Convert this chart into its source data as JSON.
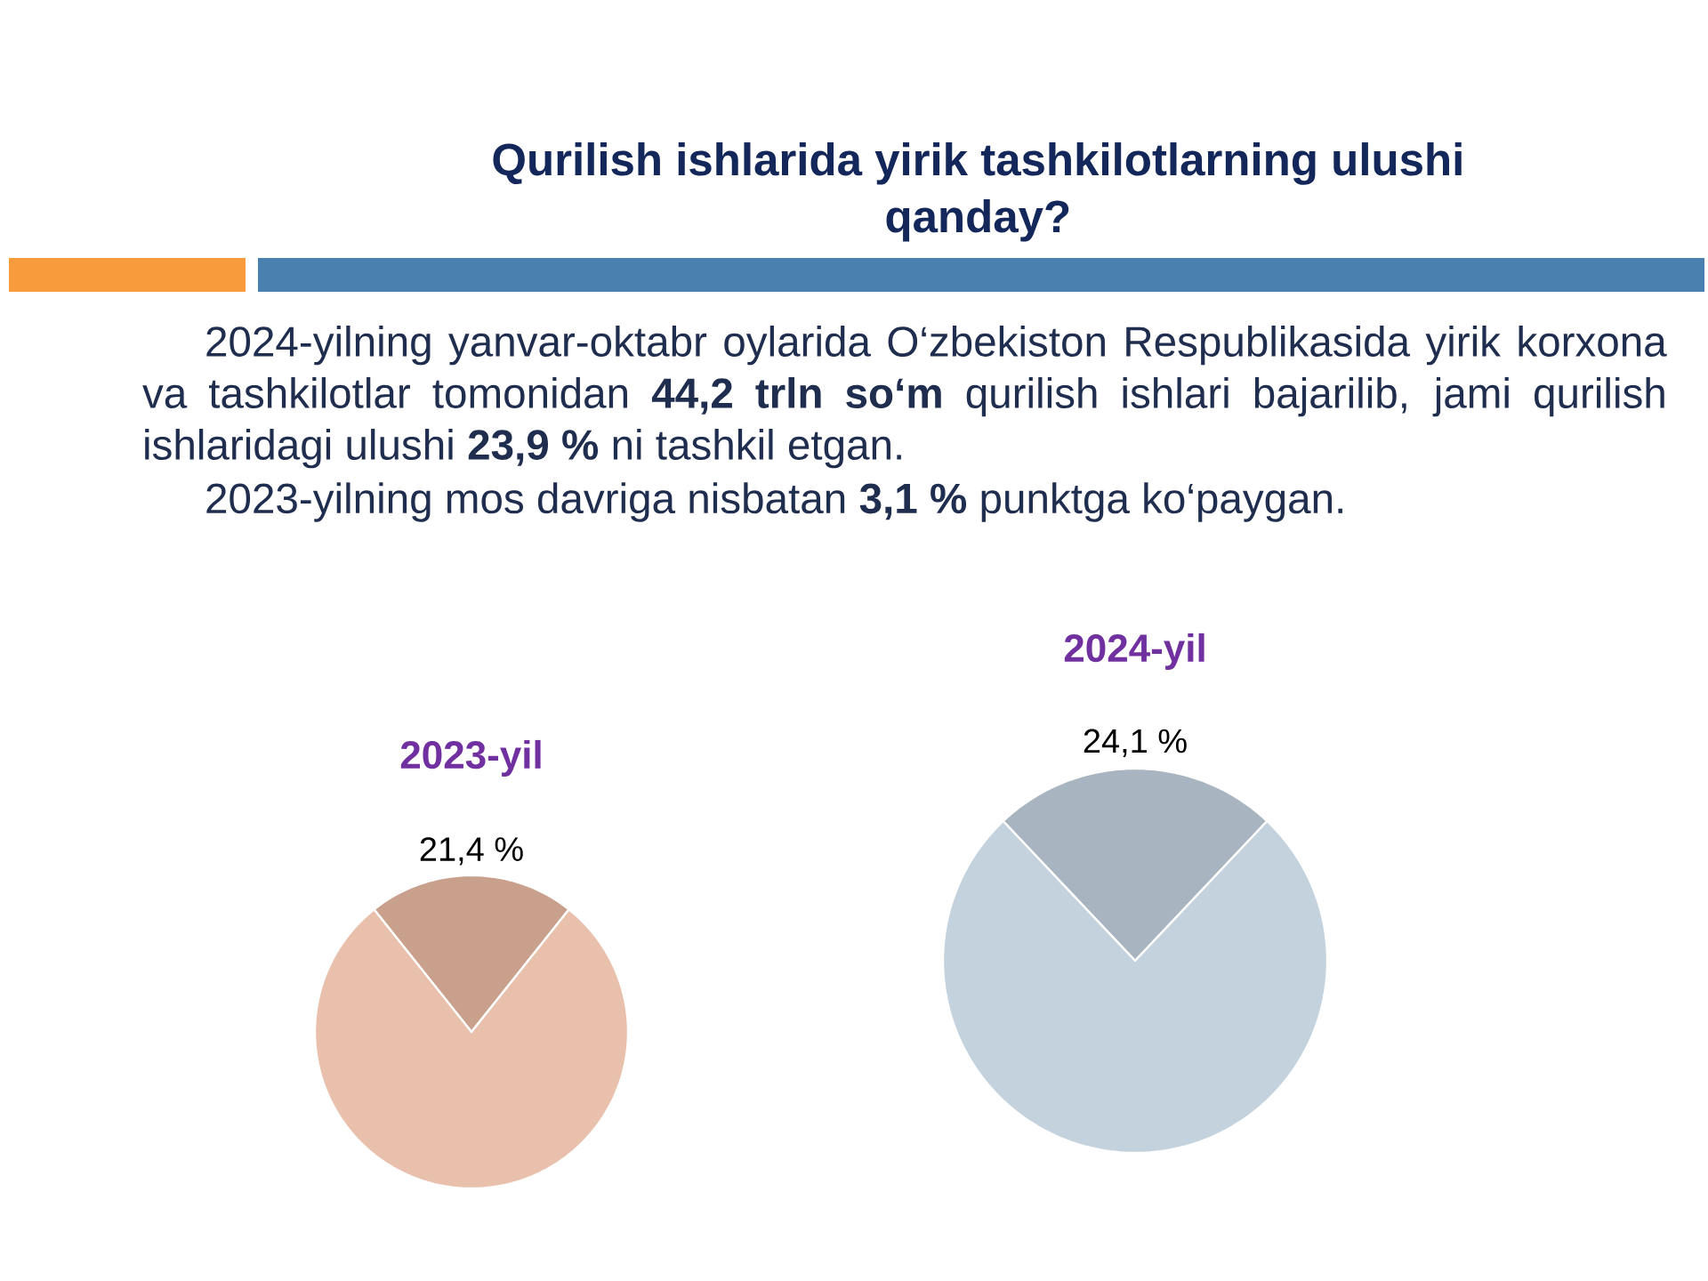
{
  "chart_data": [
    {
      "type": "other",
      "title": "Qurilish ishlarida yirik tashkilotlarning ulushi qanday?",
      "annotations": [
        "2024-yilning yanvar-oktabr oylarida O‘zbekiston Respublikasida yirik korxona va tashkilotlar tomonidan **44,2 trln so‘m** qurilish ishlari bajarilib, jami qurilish ishlaridagi ulushi **23,9 %** ni tashkil etgan.",
        "2023-yilning mos davriga nisbatan **3,1 %** punktga ko‘paygan."
      ]
    },
    {
      "type": "pie",
      "title": "2023-yil",
      "categories": [
        null,
        null
      ],
      "values": [
        21.4,
        78.6
      ],
      "colors": [
        "#c9a08c",
        "#e8c0ac"
      ],
      "value_labels": [
        "21,4 %",
        null
      ]
    },
    {
      "type": "pie",
      "title": "2024-yil",
      "categories": [
        null,
        null
      ],
      "values": [
        24.1,
        75.9
      ],
      "colors": [
        "#a8b4c0",
        "#c4d2de"
      ],
      "value_labels": [
        "24,1 %",
        null
      ]
    }
  ]
}
